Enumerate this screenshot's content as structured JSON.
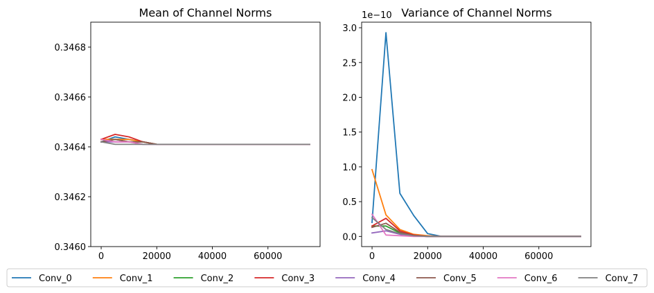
{
  "chart_data": [
    {
      "type": "line",
      "title": "Mean of Channel Norms",
      "xlabel": "",
      "ylabel": "",
      "xlim": [
        -3750,
        78750
      ],
      "ylim": [
        0.346,
        0.3469
      ],
      "x_ticks": [
        0,
        20000,
        40000,
        60000
      ],
      "x_tick_labels": [
        "0",
        "20000",
        "40000",
        "60000"
      ],
      "y_ticks": [
        0.346,
        0.3462,
        0.3464,
        0.3466,
        0.3468
      ],
      "y_tick_labels": [
        "0.3460",
        "0.3462",
        "0.3464",
        "0.3466",
        "0.3468"
      ],
      "x": [
        0,
        5000,
        10000,
        15000,
        20000,
        25000,
        30000,
        35000,
        40000,
        45000,
        50000,
        55000,
        60000,
        65000,
        70000,
        75000
      ],
      "series": [
        {
          "name": "Conv_0",
          "color": "#1f77b4",
          "values": [
            0.34642,
            0.34644,
            0.34643,
            0.34642,
            0.34641,
            0.34641,
            0.34641,
            0.34641,
            0.34641,
            0.34641,
            0.34641,
            0.34641,
            0.34641,
            0.34641,
            0.34641,
            0.34641
          ]
        },
        {
          "name": "Conv_1",
          "color": "#ff7f0e",
          "values": [
            0.34643,
            0.34643,
            0.34643,
            0.34642,
            0.34641,
            0.34641,
            0.34641,
            0.34641,
            0.34641,
            0.34641,
            0.34641,
            0.34641,
            0.34641,
            0.34641,
            0.34641,
            0.34641
          ]
        },
        {
          "name": "Conv_2",
          "color": "#2ca02c",
          "values": [
            0.34642,
            0.34643,
            0.34642,
            0.34642,
            0.34641,
            0.34641,
            0.34641,
            0.34641,
            0.34641,
            0.34641,
            0.34641,
            0.34641,
            0.34641,
            0.34641,
            0.34641,
            0.34641
          ]
        },
        {
          "name": "Conv_3",
          "color": "#d62728",
          "values": [
            0.34643,
            0.34645,
            0.34644,
            0.34642,
            0.34641,
            0.34641,
            0.34641,
            0.34641,
            0.34641,
            0.34641,
            0.34641,
            0.34641,
            0.34641,
            0.34641,
            0.34641,
            0.34641
          ]
        },
        {
          "name": "Conv_4",
          "color": "#9467bd",
          "values": [
            0.34642,
            0.34642,
            0.34642,
            0.34641,
            0.34641,
            0.34641,
            0.34641,
            0.34641,
            0.34641,
            0.34641,
            0.34641,
            0.34641,
            0.34641,
            0.34641,
            0.34641,
            0.34641
          ]
        },
        {
          "name": "Conv_5",
          "color": "#8c564b",
          "values": [
            0.34642,
            0.34643,
            0.34642,
            0.34642,
            0.34641,
            0.34641,
            0.34641,
            0.34641,
            0.34641,
            0.34641,
            0.34641,
            0.34641,
            0.34641,
            0.34641,
            0.34641,
            0.34641
          ]
        },
        {
          "name": "Conv_6",
          "color": "#e377c2",
          "values": [
            0.34643,
            0.34642,
            0.34642,
            0.34641,
            0.34641,
            0.34641,
            0.34641,
            0.34641,
            0.34641,
            0.34641,
            0.34641,
            0.34641,
            0.34641,
            0.34641,
            0.34641,
            0.34641
          ]
        },
        {
          "name": "Conv_7",
          "color": "#7f7f7f",
          "values": [
            0.34642,
            0.34641,
            0.34641,
            0.34641,
            0.34641,
            0.34641,
            0.34641,
            0.34641,
            0.34641,
            0.34641,
            0.34641,
            0.34641,
            0.34641,
            0.34641,
            0.34641,
            0.34641
          ]
        }
      ]
    },
    {
      "type": "line",
      "title": "Variance of Channel Norms",
      "xlabel": "",
      "ylabel": "",
      "y_scale_label": "1e−10",
      "xlim": [
        -3750,
        78750
      ],
      "ylim": [
        -0.146,
        3.08
      ],
      "x_ticks": [
        0,
        20000,
        40000,
        60000
      ],
      "x_tick_labels": [
        "0",
        "20000",
        "40000",
        "60000"
      ],
      "y_ticks": [
        0,
        0.5,
        1.0,
        1.5,
        2.0,
        2.5,
        3.0
      ],
      "y_tick_labels": [
        "0.0",
        "0.5",
        "1.0",
        "1.5",
        "2.0",
        "2.5",
        "3.0"
      ],
      "x": [
        0,
        5000,
        10000,
        15000,
        20000,
        25000,
        30000,
        35000,
        40000,
        45000,
        50000,
        55000,
        60000,
        65000,
        70000,
        75000
      ],
      "series": [
        {
          "name": "Conv_0",
          "color": "#1f77b4",
          "values": [
            0.2,
            2.93,
            0.62,
            0.3,
            0.04,
            0.0,
            0.0,
            0.0,
            0.0,
            0.0,
            0.0,
            0.0,
            0.0,
            0.0,
            0.0,
            0.0
          ]
        },
        {
          "name": "Conv_1",
          "color": "#ff7f0e",
          "values": [
            0.96,
            0.31,
            0.1,
            0.03,
            0.01,
            0.0,
            0.0,
            0.0,
            0.0,
            0.0,
            0.0,
            0.0,
            0.0,
            0.0,
            0.0,
            0.0
          ]
        },
        {
          "name": "Conv_2",
          "color": "#2ca02c",
          "values": [
            0.15,
            0.15,
            0.05,
            0.01,
            0.0,
            0.0,
            0.0,
            0.0,
            0.0,
            0.0,
            0.0,
            0.0,
            0.0,
            0.0,
            0.0,
            0.0
          ]
        },
        {
          "name": "Conv_3",
          "color": "#d62728",
          "values": [
            0.15,
            0.26,
            0.08,
            0.02,
            0.0,
            0.0,
            0.0,
            0.0,
            0.0,
            0.0,
            0.0,
            0.0,
            0.0,
            0.0,
            0.0,
            0.0
          ]
        },
        {
          "name": "Conv_4",
          "color": "#9467bd",
          "values": [
            0.05,
            0.08,
            0.03,
            0.01,
            0.0,
            0.0,
            0.0,
            0.0,
            0.0,
            0.0,
            0.0,
            0.0,
            0.0,
            0.0,
            0.0,
            0.0
          ]
        },
        {
          "name": "Conv_5",
          "color": "#8c564b",
          "values": [
            0.13,
            0.19,
            0.06,
            0.01,
            0.0,
            0.0,
            0.0,
            0.0,
            0.0,
            0.0,
            0.0,
            0.0,
            0.0,
            0.0,
            0.0,
            0.0
          ]
        },
        {
          "name": "Conv_6",
          "color": "#e377c2",
          "values": [
            0.32,
            0.02,
            0.01,
            0.0,
            0.0,
            0.0,
            0.0,
            0.0,
            0.0,
            0.0,
            0.0,
            0.0,
            0.0,
            0.0,
            0.0,
            0.0
          ]
        },
        {
          "name": "Conv_7",
          "color": "#7f7f7f",
          "values": [
            0.27,
            0.1,
            0.04,
            0.01,
            0.0,
            0.0,
            0.0,
            0.0,
            0.0,
            0.0,
            0.0,
            0.0,
            0.0,
            0.0,
            0.0,
            0.0
          ]
        }
      ]
    }
  ],
  "legend": {
    "position": "bottom",
    "items": [
      {
        "label": "Conv_0",
        "color": "#1f77b4"
      },
      {
        "label": "Conv_1",
        "color": "#ff7f0e"
      },
      {
        "label": "Conv_2",
        "color": "#2ca02c"
      },
      {
        "label": "Conv_3",
        "color": "#d62728"
      },
      {
        "label": "Conv_4",
        "color": "#9467bd"
      },
      {
        "label": "Conv_5",
        "color": "#8c564b"
      },
      {
        "label": "Conv_6",
        "color": "#e377c2"
      },
      {
        "label": "Conv_7",
        "color": "#7f7f7f"
      }
    ]
  }
}
